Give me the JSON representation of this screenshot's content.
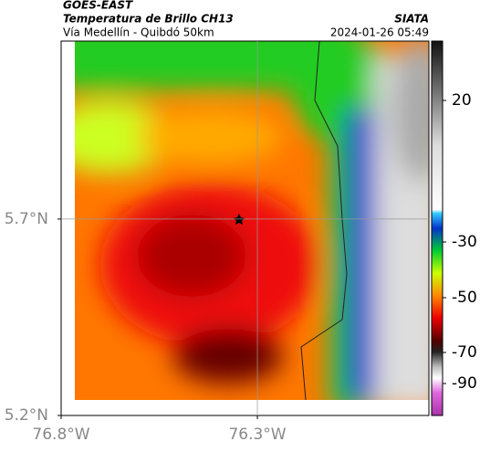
{
  "header": {
    "source": "GOES-EAST",
    "product": "Temperatura de Brillo CH13",
    "route": "Vía Medellín - Quibdó 50km",
    "agency": "SIATA",
    "timestamp": "2024-01-26 05:49"
  },
  "map": {
    "xlim": [
      -76.8,
      -75.863
    ],
    "ylim": [
      5.2,
      6.153
    ],
    "xticks": [
      {
        "value": -76.8,
        "label": "76.8°W"
      },
      {
        "value": -76.3,
        "label": "76.3°W"
      }
    ],
    "yticks": [
      {
        "value": 5.2,
        "label": "5.2°N"
      },
      {
        "value": 5.7,
        "label": "5.7°N"
      }
    ],
    "grid": true
  },
  "colorbar": {
    "ticks": [
      20,
      -30,
      -50,
      -70,
      -90
    ]
  }
}
